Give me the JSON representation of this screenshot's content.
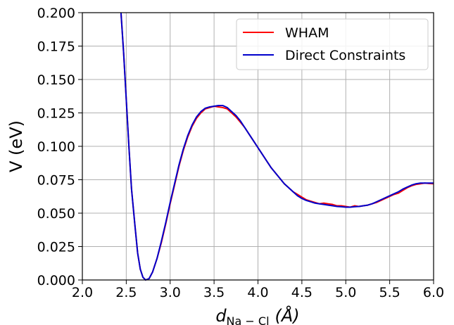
{
  "chart_data": {
    "type": "line",
    "xlabel_main": "d",
    "xlabel_sub": "Na − Cl",
    "xlabel_unit": "(Å)",
    "ylabel": "V (eV)",
    "xlim": [
      2.0,
      6.0
    ],
    "ylim": [
      0.0,
      0.2
    ],
    "xticks": [
      "2.0",
      "2.5",
      "3.0",
      "3.5",
      "4.0",
      "4.5",
      "5.0",
      "5.5",
      "6.0"
    ],
    "yticks": [
      "0.000",
      "0.025",
      "0.050",
      "0.075",
      "0.100",
      "0.125",
      "0.150",
      "0.175",
      "0.200"
    ],
    "grid": true,
    "legend_position": "top-right",
    "series": [
      {
        "name": "WHAM",
        "color": "#ff0000",
        "points": [
          [
            2.44,
            0.2
          ],
          [
            2.47,
            0.17
          ],
          [
            2.5,
            0.135
          ],
          [
            2.53,
            0.1
          ],
          [
            2.56,
            0.068
          ],
          [
            2.6,
            0.04
          ],
          [
            2.63,
            0.02
          ],
          [
            2.66,
            0.008
          ],
          [
            2.69,
            0.002
          ],
          [
            2.72,
            0.0
          ],
          [
            2.76,
            0.001
          ],
          [
            2.8,
            0.006
          ],
          [
            2.85,
            0.016
          ],
          [
            2.9,
            0.028
          ],
          [
            2.95,
            0.042
          ],
          [
            3.0,
            0.057
          ],
          [
            3.05,
            0.071
          ],
          [
            3.1,
            0.085
          ],
          [
            3.15,
            0.097
          ],
          [
            3.2,
            0.107
          ],
          [
            3.25,
            0.115
          ],
          [
            3.3,
            0.121
          ],
          [
            3.35,
            0.125
          ],
          [
            3.4,
            0.128
          ],
          [
            3.45,
            0.129
          ],
          [
            3.5,
            0.13
          ],
          [
            3.55,
            0.1295
          ],
          [
            3.6,
            0.129
          ],
          [
            3.65,
            0.128
          ],
          [
            3.7,
            0.125
          ],
          [
            3.75,
            0.122
          ],
          [
            3.8,
            0.118
          ],
          [
            3.85,
            0.114
          ],
          [
            3.9,
            0.109
          ],
          [
            3.95,
            0.104
          ],
          [
            4.0,
            0.099
          ],
          [
            4.05,
            0.094
          ],
          [
            4.1,
            0.089
          ],
          [
            4.15,
            0.084
          ],
          [
            4.2,
            0.08
          ],
          [
            4.25,
            0.076
          ],
          [
            4.3,
            0.072
          ],
          [
            4.35,
            0.069
          ],
          [
            4.4,
            0.066
          ],
          [
            4.45,
            0.064
          ],
          [
            4.5,
            0.062
          ],
          [
            4.55,
            0.06
          ],
          [
            4.6,
            0.059
          ],
          [
            4.65,
            0.058
          ],
          [
            4.7,
            0.057
          ],
          [
            4.75,
            0.0575
          ],
          [
            4.8,
            0.057
          ],
          [
            4.85,
            0.0565
          ],
          [
            4.9,
            0.0555
          ],
          [
            4.95,
            0.0555
          ],
          [
            5.0,
            0.055
          ],
          [
            5.05,
            0.0545
          ],
          [
            5.1,
            0.0555
          ],
          [
            5.15,
            0.055
          ],
          [
            5.2,
            0.0555
          ],
          [
            5.25,
            0.056
          ],
          [
            5.3,
            0.057
          ],
          [
            5.35,
            0.058
          ],
          [
            5.4,
            0.0595
          ],
          [
            5.45,
            0.061
          ],
          [
            5.5,
            0.0625
          ],
          [
            5.55,
            0.064
          ],
          [
            5.6,
            0.065
          ],
          [
            5.65,
            0.067
          ],
          [
            5.7,
            0.069
          ],
          [
            5.75,
            0.0705
          ],
          [
            5.8,
            0.0715
          ],
          [
            5.85,
            0.072
          ],
          [
            5.9,
            0.0725
          ],
          [
            5.95,
            0.0722
          ],
          [
            6.0,
            0.072
          ]
        ]
      },
      {
        "name": "Direct Constraints",
        "color": "#0000cc",
        "points": [
          [
            2.44,
            0.2
          ],
          [
            2.47,
            0.17
          ],
          [
            2.5,
            0.135
          ],
          [
            2.53,
            0.1
          ],
          [
            2.56,
            0.068
          ],
          [
            2.6,
            0.04
          ],
          [
            2.63,
            0.02
          ],
          [
            2.66,
            0.008
          ],
          [
            2.69,
            0.002
          ],
          [
            2.72,
            0.0
          ],
          [
            2.76,
            0.001
          ],
          [
            2.8,
            0.006
          ],
          [
            2.85,
            0.016
          ],
          [
            2.9,
            0.029
          ],
          [
            2.95,
            0.043
          ],
          [
            3.0,
            0.058
          ],
          [
            3.05,
            0.072
          ],
          [
            3.1,
            0.086
          ],
          [
            3.15,
            0.098
          ],
          [
            3.2,
            0.108
          ],
          [
            3.25,
            0.116
          ],
          [
            3.3,
            0.122
          ],
          [
            3.35,
            0.126
          ],
          [
            3.4,
            0.1285
          ],
          [
            3.45,
            0.1295
          ],
          [
            3.5,
            0.13
          ],
          [
            3.55,
            0.1305
          ],
          [
            3.6,
            0.1305
          ],
          [
            3.65,
            0.129
          ],
          [
            3.7,
            0.126
          ],
          [
            3.75,
            0.123
          ],
          [
            3.8,
            0.119
          ],
          [
            3.85,
            0.114
          ],
          [
            3.9,
            0.109
          ],
          [
            3.95,
            0.104
          ],
          [
            4.0,
            0.099
          ],
          [
            4.05,
            0.094
          ],
          [
            4.1,
            0.089
          ],
          [
            4.15,
            0.084
          ],
          [
            4.2,
            0.08
          ],
          [
            4.25,
            0.076
          ],
          [
            4.3,
            0.072
          ],
          [
            4.35,
            0.069
          ],
          [
            4.4,
            0.066
          ],
          [
            4.45,
            0.063
          ],
          [
            4.5,
            0.061
          ],
          [
            4.55,
            0.0595
          ],
          [
            4.6,
            0.0585
          ],
          [
            4.65,
            0.0575
          ],
          [
            4.7,
            0.057
          ],
          [
            4.75,
            0.0565
          ],
          [
            4.8,
            0.056
          ],
          [
            4.85,
            0.0555
          ],
          [
            4.9,
            0.055
          ],
          [
            4.95,
            0.0548
          ],
          [
            5.0,
            0.0545
          ],
          [
            5.05,
            0.0545
          ],
          [
            5.1,
            0.0548
          ],
          [
            5.15,
            0.055
          ],
          [
            5.2,
            0.0555
          ],
          [
            5.25,
            0.056
          ],
          [
            5.3,
            0.057
          ],
          [
            5.35,
            0.0585
          ],
          [
            5.4,
            0.06
          ],
          [
            5.45,
            0.0615
          ],
          [
            5.5,
            0.063
          ],
          [
            5.55,
            0.0645
          ],
          [
            5.6,
            0.066
          ],
          [
            5.65,
            0.068
          ],
          [
            5.7,
            0.0695
          ],
          [
            5.75,
            0.071
          ],
          [
            5.8,
            0.072
          ],
          [
            5.85,
            0.0725
          ],
          [
            5.9,
            0.0725
          ],
          [
            5.95,
            0.0725
          ],
          [
            6.0,
            0.0725
          ]
        ]
      }
    ]
  }
}
